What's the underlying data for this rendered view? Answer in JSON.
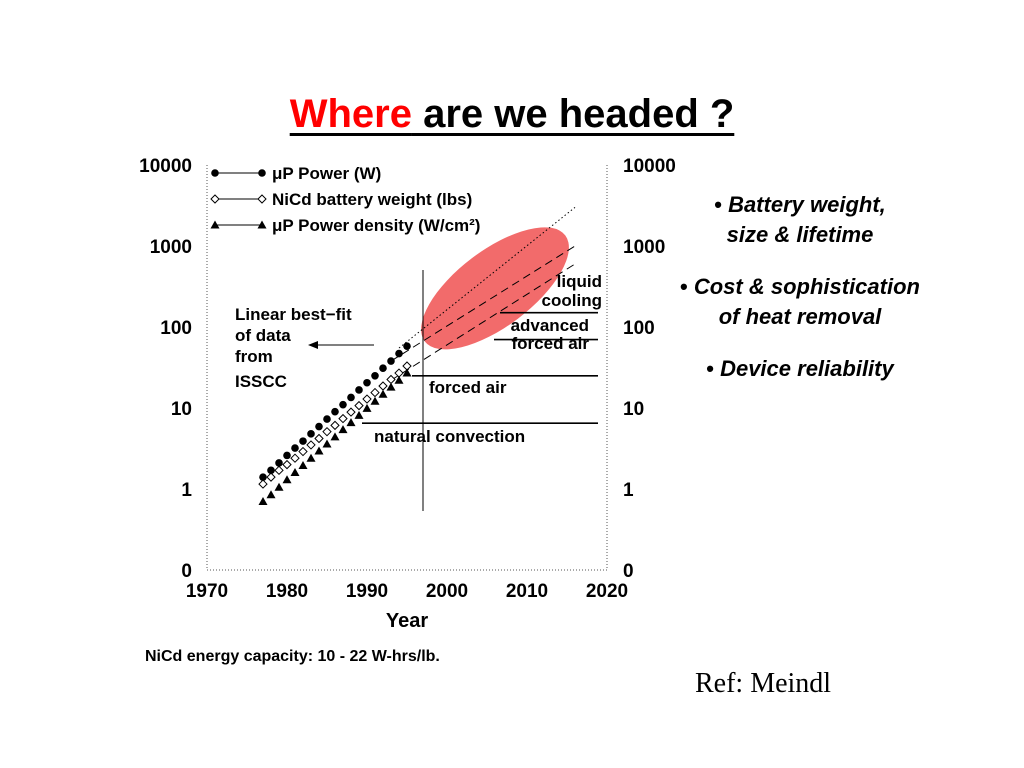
{
  "slide": {
    "title_highlight": "Where",
    "title_rest": " are we headed ?",
    "bullets": [
      {
        "line1": "Battery weight,",
        "line2": "size & lifetime"
      },
      {
        "line1": "Cost & sophistication",
        "line2": "of heat removal"
      },
      {
        "line1": "Device reliability",
        "line2": ""
      }
    ],
    "footnote": "NiCd energy capacity: 10 - 22 W-hrs/lb.",
    "reference": "Ref: Meindl"
  },
  "chart_data": {
    "type": "scatter",
    "xlabel": "Year",
    "ylabel": "",
    "xlim": [
      1970,
      2020
    ],
    "y_scale": "log",
    "x_ticks": [
      "1970",
      "1980",
      "1990",
      "2000",
      "2010",
      "2020"
    ],
    "y_ticks_left": [
      "0",
      "1",
      "10",
      "100",
      "1000",
      "10000"
    ],
    "y_ticks_right": [
      "0",
      "1",
      "10",
      "100",
      "1000",
      "10000"
    ],
    "grid": false,
    "legend_position": "top-left",
    "series": [
      {
        "name": "μP Power (W)",
        "marker": "filled-circle",
        "x": [
          1977,
          1978,
          1979,
          1980,
          1981,
          1982,
          1983,
          1984,
          1985,
          1986,
          1987,
          1988,
          1989,
          1990,
          1991,
          1992,
          1993,
          1994,
          1995
        ],
        "y": [
          1.4,
          1.7,
          2.1,
          2.6,
          3.2,
          3.9,
          4.8,
          5.9,
          7.3,
          9.0,
          11,
          13.5,
          16.7,
          20.5,
          25,
          31,
          38,
          47,
          58
        ]
      },
      {
        "name": "NiCd battery weight (lbs)",
        "marker": "open-diamond",
        "x": [
          1977,
          1978,
          1979,
          1980,
          1981,
          1982,
          1983,
          1984,
          1985,
          1986,
          1987,
          1988,
          1989,
          1990,
          1991,
          1992,
          1993,
          1994,
          1995
        ],
        "y": [
          1.15,
          1.4,
          1.7,
          2.0,
          2.4,
          2.9,
          3.5,
          4.2,
          5.1,
          6.1,
          7.4,
          8.9,
          10.7,
          12.9,
          15.5,
          18.7,
          22.5,
          27,
          33
        ]
      },
      {
        "name": "μP Power density (W/cm²)",
        "marker": "filled-triangle",
        "x": [
          1977,
          1978,
          1979,
          1980,
          1981,
          1982,
          1983,
          1984,
          1985,
          1986,
          1987,
          1988,
          1989,
          1990,
          1991,
          1992,
          1993,
          1994,
          1995
        ],
        "y": [
          0.7,
          0.85,
          1.05,
          1.3,
          1.6,
          1.95,
          2.4,
          2.95,
          3.6,
          4.4,
          5.4,
          6.6,
          8.1,
          9.9,
          12.1,
          14.8,
          18.1,
          22,
          27
        ]
      }
    ],
    "fit_lines": [
      {
        "style": "dotted",
        "from": [
          1994,
          55
        ],
        "to": [
          2016,
          3000
        ]
      },
      {
        "style": "dashed",
        "from": [
          1993,
          38
        ],
        "to": [
          2016,
          1000
        ]
      },
      {
        "style": "dashed",
        "from": [
          1993,
          22
        ],
        "to": [
          2016,
          600
        ]
      }
    ],
    "divider_year": 1997,
    "cooling_limits": [
      {
        "label": "natural convection",
        "level": 6.5
      },
      {
        "label": "forced air",
        "level": 25
      },
      {
        "label_line1": "advanced",
        "label_line2": "forced air",
        "level": 70
      },
      {
        "label_line1": "liquid",
        "label_line2": "cooling",
        "level": 150
      }
    ],
    "annotations": {
      "fit_text": [
        "Linear best−fit",
        "of data",
        "from",
        "ISSCC"
      ]
    },
    "highlight": {
      "shape": "ellipse",
      "color": "#f26b6b",
      "center": [
        2006,
        300
      ]
    }
  }
}
